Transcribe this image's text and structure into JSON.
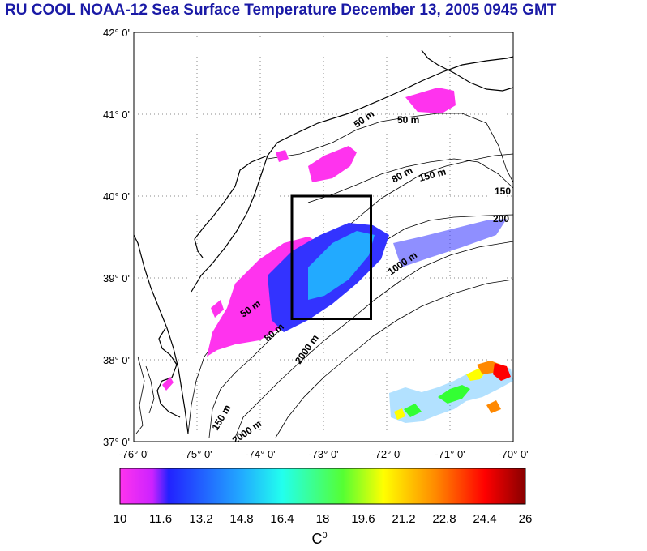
{
  "title": "RU COOL  NOAA-12 Sea Surface Temperature December 13, 2005 0945 GMT",
  "map": {
    "lat_labels": [
      "42° 0'",
      "41° 0'",
      "40° 0'",
      "39° 0'",
      "38° 0'",
      "37° 0'"
    ],
    "lon_labels": [
      "-76° 0'",
      "-75° 0'",
      "-74° 0'",
      "-73° 0'",
      "-72° 0'",
      "-71° 0'",
      "-70° 0'"
    ],
    "lat_range": [
      37,
      42
    ],
    "lon_range": [
      -76,
      -70
    ],
    "contour_labels": [
      "50 m",
      "50 m",
      "150 m",
      "80 m",
      "150",
      "200",
      "1000 m",
      "2000 m",
      "50 m",
      "80 m",
      "150 m",
      "2000 m"
    ],
    "box": {
      "lat_top": 40.0,
      "lat_bottom": 38.5,
      "lon_left": -73.5,
      "lon_right": -72.25
    }
  },
  "colorbar": {
    "ticks": [
      "10",
      "11.6",
      "13.2",
      "14.8",
      "16.4",
      "18",
      "19.6",
      "21.2",
      "22.8",
      "24.4",
      "26"
    ],
    "min": 10,
    "max": 26,
    "unit_base": "C",
    "unit_sup": "0",
    "colors": [
      "#ff33ee",
      "#2222ff",
      "#22ccff",
      "#33ff33",
      "#ffff00",
      "#ff8800",
      "#ff0000",
      "#880000"
    ]
  }
}
